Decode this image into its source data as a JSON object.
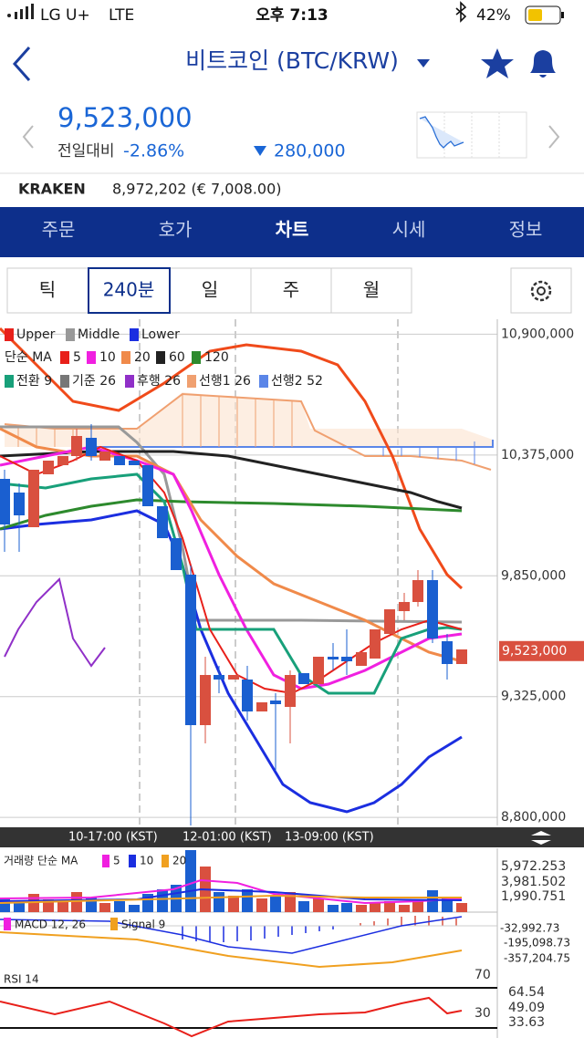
{
  "status": {
    "carrier": "LG U+",
    "network": "LTE",
    "time": "오후 7:13",
    "battery": "42%"
  },
  "header": {
    "title": "비트코인 (BTC/KRW)"
  },
  "price": {
    "value": "9,523,000",
    "change_label": "전일대비",
    "change_pct": "-2.86%",
    "change_amount": "280,000"
  },
  "exchange": {
    "name": "KRAKEN",
    "price": "8,972,202 (€ 7,008.00)"
  },
  "tabs": [
    "주문",
    "호가",
    "차트",
    "시세",
    "정보"
  ],
  "periods": [
    "틱",
    "240분",
    "일",
    "주",
    "월"
  ],
  "chart_data": {
    "type": "candlestick",
    "legend": {
      "bollinger": [
        "Upper",
        "Middle",
        "Lower"
      ],
      "ma_title": "단순 MA",
      "ma": [
        "5",
        "10",
        "20",
        "60",
        "120"
      ],
      "ichimoku": [
        "전환 9",
        "기준 26",
        "후행 26",
        "선행1 26",
        "선행2 52"
      ]
    },
    "ylim": [
      8765000,
      10965000
    ],
    "yticks": [
      {
        "value": 10900000,
        "label": "10,900,000"
      },
      {
        "value": 10375000,
        "label": "10,375,000"
      },
      {
        "value": 9850000,
        "label": "9,850,000"
      },
      {
        "value": 9325000,
        "label": "9,325,000"
      },
      {
        "value": 8800000,
        "label": "8,800,000"
      }
    ],
    "current": {
      "value": 9523000,
      "label": "9,523,000"
    },
    "time_labels": [
      "10-17:00 (KST)",
      "12-01:00 (KST)",
      "13-09:00 (KST)"
    ]
  },
  "volume": {
    "title": "거래량 단순 MA",
    "ma": [
      "5",
      "10",
      "20"
    ],
    "ticks": [
      "5,972.253",
      "3,981.502",
      "1,990.751"
    ]
  },
  "macd": {
    "title": "MACD 12, 26",
    "signal": "Signal 9",
    "ticks": [
      "-32,992.73",
      "-195,098.73",
      "-357,204.75"
    ]
  },
  "rsi": {
    "title": "RSI 14",
    "levels": [
      "70",
      "30"
    ],
    "ticks": [
      "64.54",
      "49.09",
      "33.63"
    ]
  }
}
